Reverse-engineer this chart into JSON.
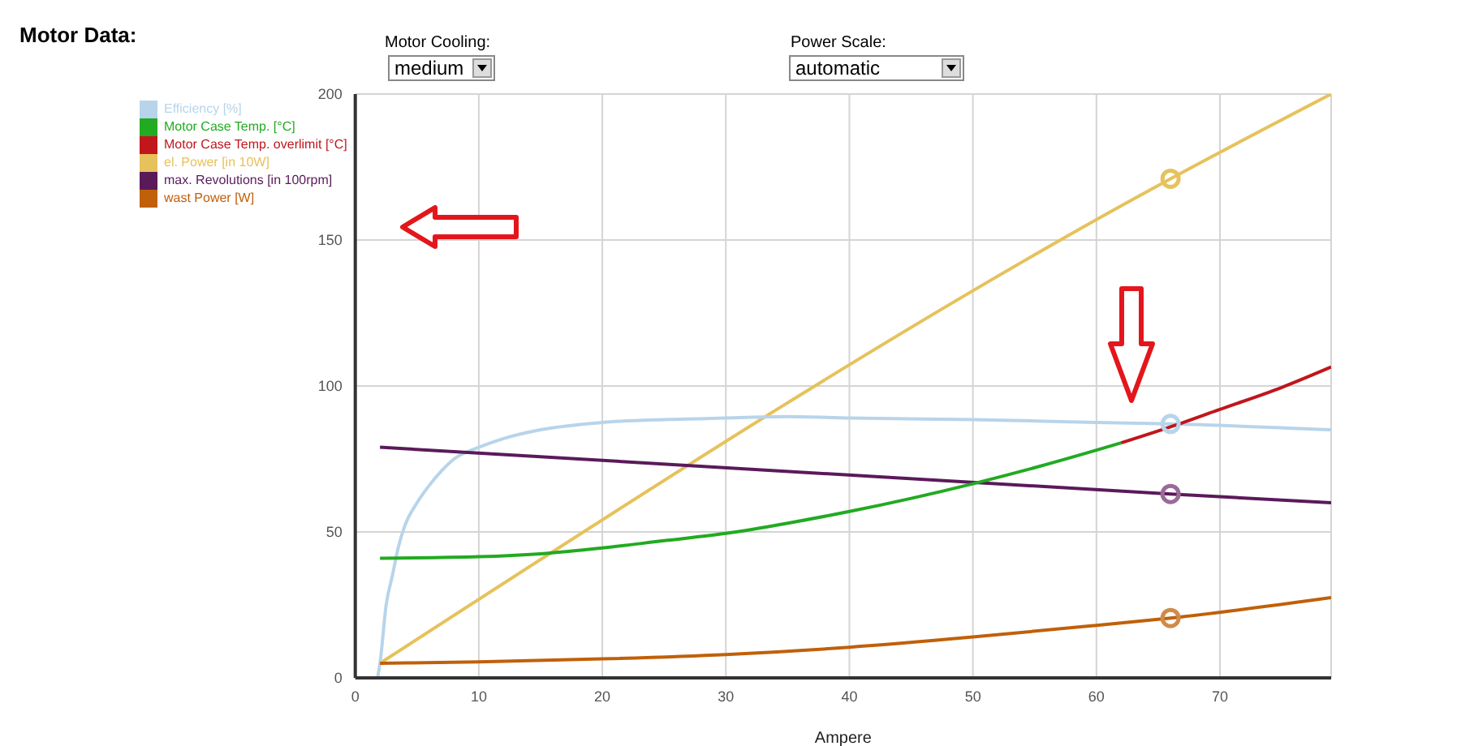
{
  "chart_data": {
    "type": "line",
    "title": "Motor Data:",
    "xlabel": "Ampere",
    "annotations": [
      "Motor Cooling:",
      "medium",
      "Power Scale:",
      "automatic"
    ],
    "xlim": [
      0,
      79
    ],
    "xticks": [
      0,
      10,
      20,
      30,
      40,
      50,
      60,
      70
    ],
    "ylim": [
      0,
      200
    ],
    "yticks": [
      0,
      50,
      100,
      150,
      200
    ],
    "grid": true,
    "legend": "top left",
    "marker": "none",
    "line_style": "solid",
    "series": [
      {
        "name": "el. Power [in 10W]",
        "color": "#e6c25c",
        "x": [
          2,
          66,
          79
        ],
        "values": [
          5,
          171,
          200
        ]
      },
      {
        "name": "Efficiency [%]",
        "color": "#b8d4ea",
        "x": [
          1.8,
          2,
          2.5,
          3,
          3.5,
          4,
          5,
          6,
          7,
          8,
          10,
          12,
          15,
          20,
          25,
          30,
          35,
          40,
          50,
          60,
          66,
          79
        ],
        "values": [
          0,
          5,
          25,
          35,
          45,
          52,
          60,
          66,
          71,
          75,
          79,
          82,
          85,
          87.5,
          88.5,
          89,
          89.5,
          89,
          88.5,
          87.5,
          87,
          85
        ]
      },
      {
        "name": "max. Revolutions [in 100rpm]",
        "color": "#5a1a5a",
        "x": [
          2,
          66,
          79
        ],
        "values": [
          79,
          63,
          60
        ]
      },
      {
        "name": "wast Power [W]",
        "color": "#c0600a",
        "x": [
          2,
          10,
          20,
          30,
          40,
          50,
          60,
          66,
          79
        ],
        "values": [
          5,
          5.5,
          6.5,
          8,
          10.5,
          14,
          18,
          20.5,
          27.5
        ]
      },
      {
        "name": "Motor Case Temp. [°C]",
        "color": "#22aa22",
        "x": [
          2,
          10,
          15,
          20,
          25,
          30,
          35,
          40,
          45,
          50,
          55,
          60,
          62
        ],
        "values": [
          41,
          41.5,
          42.5,
          44.5,
          47,
          49.5,
          53,
          57,
          61.5,
          66.5,
          72,
          78,
          80.5
        ]
      },
      {
        "name": "Motor Case Temp. overlimit [°C]",
        "color": "#c0161c",
        "x": [
          62,
          66,
          70,
          75,
          79
        ],
        "values": [
          80.5,
          86,
          92,
          99.5,
          106.5
        ]
      },
      {
        "type": "scatter",
        "marker": "circle",
        "x": [
          66,
          66,
          66,
          66
        ],
        "values": [
          171,
          87,
          63,
          20.5
        ],
        "colors": [
          "#e6c25c",
          "#b8d4ea",
          "#9a6a9a",
          "#d08a4a"
        ]
      }
    ]
  }
}
